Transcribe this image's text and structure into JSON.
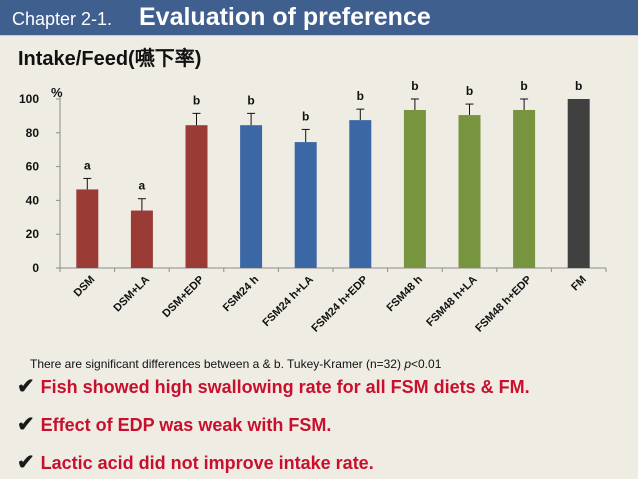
{
  "header": {
    "chapter": "Chapter 2-1.",
    "title": "Evaluation of preference"
  },
  "subtitle": "Intake/Feed(嚥下率)",
  "colors": {
    "header_bg": "#3f5f8f",
    "dsm": "#9b3b36",
    "fsm24": "#3c67a5",
    "fsm48": "#77953f",
    "fm": "#404040",
    "bullet_text": "#c8102e"
  },
  "chart_data": {
    "type": "bar",
    "ylabel": "%",
    "ylim": [
      0,
      100
    ],
    "yticks": [
      0,
      20,
      40,
      60,
      80,
      100
    ],
    "categories": [
      "DSM",
      "DSM+LA",
      "DSM+EDP",
      "FSM24 h",
      "FSM24 h+LA",
      "FSM24 h+EDP",
      "FSM48 h",
      "FSM48 h+LA",
      "FSM48 h+EDP",
      "FM"
    ],
    "values": [
      46.5,
      34,
      84.5,
      84.5,
      74.5,
      87.5,
      93.5,
      90.5,
      93.5,
      100
    ],
    "errors": [
      6.5,
      7,
      7,
      7,
      7.5,
      6.5,
      6.5,
      6.5,
      6.5,
      0
    ],
    "groups": [
      "dsm",
      "dsm",
      "dsm",
      "fsm24",
      "fsm24",
      "fsm24",
      "fsm48",
      "fsm48",
      "fsm48",
      "fm"
    ],
    "significance_labels": [
      "a",
      "a",
      "b",
      "b",
      "b",
      "b",
      "b",
      "b",
      "b",
      "b"
    ]
  },
  "note": {
    "text": "There are significant differences between a & b.  Tukey-Kramer (n=32)",
    "p": "p",
    "p_value": "<0.01"
  },
  "bullets": [
    "Fish showed high swallowing rate for all FSM diets & FM.",
    "Effect of EDP was weak with FSM.",
    "Lactic acid did not improve intake rate."
  ],
  "check_glyph": "✔"
}
